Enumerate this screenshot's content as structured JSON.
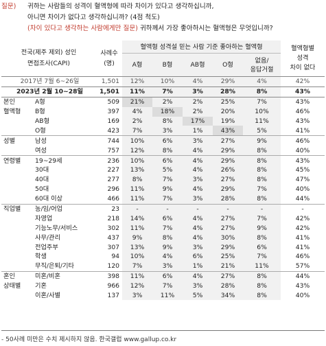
{
  "question": {
    "label": "질문)",
    "line1": "귀하는 사람들의 성격이 혈액형에 따라 차이가 있다고 생각하십니까,",
    "line2": "아니면 차이가 없다고 생각하십니까? (4점 척도)",
    "line3_red": "(차이 있다고 생각하는 사람에게만 질문)",
    "line3_rest": " 귀하께서 가장 좋아하시는 혈액형은 무엇입니까?"
  },
  "header": {
    "region_col": "전국(제주 제외) 성인\n면접조사(CAPI)",
    "region_l1": "전국(제주 제외) 성인",
    "region_l2": "면접조사(CAPI)",
    "cases_l1": "사례수",
    "cases_l2": "(명)",
    "group_title": "혈액형 성격설 믿는 사람 기준 좋아하는 혈액형",
    "cols": [
      "A형",
      "B형",
      "AB형",
      "O형"
    ],
    "none_l1": "없음/",
    "none_l2": "응답거절",
    "diff_l1": "혈액형별",
    "diff_l2": "성격",
    "diff_l3": "차이 없다"
  },
  "rows": [
    {
      "group": "",
      "cat": "2017년 7월 6~26일",
      "n": "1,501",
      "a": "12%",
      "b": "10%",
      "ab": "4%",
      "o": "29%",
      "none": "4%",
      "diff": "42%",
      "type": "sub"
    },
    {
      "group": "",
      "cat": "2023년 2월 10~28일",
      "n": "1,501",
      "a": "11%",
      "b": "7%",
      "ab": "3%",
      "o": "28%",
      "none": "8%",
      "diff": "43%",
      "type": "total"
    },
    {
      "group": "본인",
      "cat": "A형",
      "n": "509",
      "a": "21%",
      "b": "2%",
      "ab": "2%",
      "o": "25%",
      "none": "7%",
      "diff": "43%",
      "type": "start",
      "hl": "a"
    },
    {
      "group": "혈액형",
      "cat": "B형",
      "n": "397",
      "a": "4%",
      "b": "18%",
      "ab": "2%",
      "o": "20%",
      "none": "10%",
      "diff": "46%",
      "hl": "b"
    },
    {
      "group": "",
      "cat": "AB형",
      "n": "169",
      "a": "2%",
      "b": "8%",
      "ab": "17%",
      "o": "19%",
      "none": "11%",
      "diff": "43%",
      "hl": "ab"
    },
    {
      "group": "",
      "cat": "O형",
      "n": "423",
      "a": "7%",
      "b": "3%",
      "ab": "1%",
      "o": "43%",
      "none": "5%",
      "diff": "41%",
      "hl": "o"
    },
    {
      "group": "성별",
      "cat": "남성",
      "n": "744",
      "a": "10%",
      "b": "6%",
      "ab": "3%",
      "o": "27%",
      "none": "9%",
      "diff": "46%",
      "type": "start"
    },
    {
      "group": "",
      "cat": "여성",
      "n": "757",
      "a": "12%",
      "b": "8%",
      "ab": "4%",
      "o": "29%",
      "none": "8%",
      "diff": "40%"
    },
    {
      "group": "연령별",
      "cat": "19~29세",
      "n": "236",
      "a": "10%",
      "b": "6%",
      "ab": "4%",
      "o": "29%",
      "none": "8%",
      "diff": "43%",
      "type": "start"
    },
    {
      "group": "",
      "cat": "30대",
      "n": "227",
      "a": "13%",
      "b": "5%",
      "ab": "4%",
      "o": "26%",
      "none": "8%",
      "diff": "45%"
    },
    {
      "group": "",
      "cat": "40대",
      "n": "277",
      "a": "8%",
      "b": "7%",
      "ab": "3%",
      "o": "27%",
      "none": "8%",
      "diff": "47%"
    },
    {
      "group": "",
      "cat": "50대",
      "n": "296",
      "a": "11%",
      "b": "9%",
      "ab": "4%",
      "o": "29%",
      "none": "7%",
      "diff": "40%"
    },
    {
      "group": "",
      "cat": "60대 이상",
      "n": "466",
      "a": "11%",
      "b": "7%",
      "ab": "3%",
      "o": "28%",
      "none": "8%",
      "diff": "44%"
    },
    {
      "group": "직업별",
      "cat": "농/임/어업",
      "n": "23",
      "a": "-",
      "b": "-",
      "ab": "-",
      "o": "-",
      "none": "-",
      "diff": "-",
      "type": "start"
    },
    {
      "group": "",
      "cat": "자영업",
      "n": "218",
      "a": "14%",
      "b": "6%",
      "ab": "4%",
      "o": "27%",
      "none": "7%",
      "diff": "42%"
    },
    {
      "group": "",
      "cat": "기능노무/서비스",
      "n": "302",
      "a": "11%",
      "b": "7%",
      "ab": "4%",
      "o": "27%",
      "none": "9%",
      "diff": "42%"
    },
    {
      "group": "",
      "cat": "사무/관리",
      "n": "437",
      "a": "9%",
      "b": "8%",
      "ab": "4%",
      "o": "30%",
      "none": "8%",
      "diff": "41%"
    },
    {
      "group": "",
      "cat": "전업주부",
      "n": "307",
      "a": "13%",
      "b": "9%",
      "ab": "3%",
      "o": "29%",
      "none": "6%",
      "diff": "41%"
    },
    {
      "group": "",
      "cat": "학생",
      "n": "94",
      "a": "10%",
      "b": "4%",
      "ab": "6%",
      "o": "25%",
      "none": "7%",
      "diff": "46%"
    },
    {
      "group": "",
      "cat": "무직/은퇴/기타",
      "n": "120",
      "a": "7%",
      "b": "3%",
      "ab": "1%",
      "o": "21%",
      "none": "11%",
      "diff": "57%"
    },
    {
      "group": "혼인",
      "cat": "미혼/비혼",
      "n": "398",
      "a": "11%",
      "b": "6%",
      "ab": "4%",
      "o": "27%",
      "none": "8%",
      "diff": "44%",
      "type": "start"
    },
    {
      "group": "상태별",
      "cat": "기혼",
      "n": "966",
      "a": "12%",
      "b": "7%",
      "ab": "3%",
      "o": "28%",
      "none": "8%",
      "diff": "43%"
    },
    {
      "group": "",
      "cat": "이혼/사별",
      "n": "137",
      "a": "3%",
      "b": "11%",
      "ab": "5%",
      "o": "34%",
      "none": "8%",
      "diff": "40%"
    }
  ],
  "footnote": "- 50사례 미만은 수치 제시하지 않음. 한국갤럽 www.gallup.co.kr",
  "colors": {
    "accent_red": "#c0392b",
    "shade": "#f1f1f1",
    "highlight": "#dcdcdc"
  }
}
